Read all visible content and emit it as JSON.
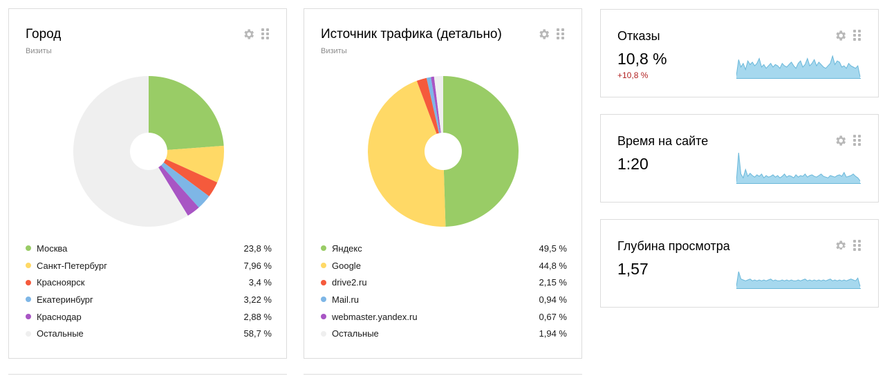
{
  "widgets": {
    "city": {
      "title": "Город",
      "subtitle": "Визиты",
      "chart_data": {
        "type": "pie",
        "categories": [
          "Москва",
          "Санкт-Петербург",
          "Красноярск",
          "Екатеринбург",
          "Краснодар",
          "Остальные"
        ],
        "values": [
          23.8,
          7.96,
          3.4,
          3.22,
          2.88,
          58.7
        ],
        "labels": [
          "23,8 %",
          "7,96 %",
          "3,4 %",
          "3,22 %",
          "2,88 %",
          "58,7 %"
        ],
        "colors": [
          "#99cc66",
          "#ffd966",
          "#f55a3c",
          "#7eb6e6",
          "#a855c4",
          "#efefef"
        ]
      }
    },
    "traffic": {
      "title": "Источник трафика (детально)",
      "subtitle": "Визиты",
      "chart_data": {
        "type": "pie",
        "categories": [
          "Яндекс",
          "Google",
          "drive2.ru",
          "Mail.ru",
          "webmaster.yandex.ru",
          "Остальные"
        ],
        "values": [
          49.5,
          44.8,
          2.15,
          0.94,
          0.67,
          1.94
        ],
        "labels": [
          "49,5 %",
          "44,8 %",
          "2,15 %",
          "0,94 %",
          "0,67 %",
          "1,94 %"
        ],
        "colors": [
          "#99cc66",
          "#ffd966",
          "#f55a3c",
          "#7eb6e6",
          "#a855c4",
          "#efefef"
        ]
      }
    },
    "bounce": {
      "title": "Отказы",
      "value": "10,8 %",
      "delta": "+10,8 %",
      "chart_data": {
        "type": "area",
        "values": [
          2,
          15,
          9,
          12,
          7,
          14,
          11,
          13,
          10,
          12,
          16,
          9,
          11,
          8,
          10,
          12,
          9,
          11,
          10,
          8,
          12,
          10,
          9,
          11,
          13,
          10,
          8,
          12,
          14,
          9,
          11,
          16,
          10,
          12,
          15,
          10,
          13,
          11,
          9,
          8,
          10,
          12,
          18,
          11,
          14,
          13,
          9,
          10,
          8,
          12,
          10,
          9,
          8,
          10,
          1
        ]
      }
    },
    "time": {
      "title": "Время на сайте",
      "value": "1:20",
      "chart_data": {
        "type": "area",
        "values": [
          2,
          40,
          12,
          7,
          18,
          9,
          13,
          10,
          8,
          11,
          9,
          12,
          7,
          10,
          8,
          9,
          11,
          8,
          10,
          7,
          9,
          12,
          8,
          10,
          9,
          7,
          11,
          8,
          10,
          9,
          12,
          8,
          10,
          11,
          9,
          8,
          10,
          12,
          9,
          8,
          7,
          10,
          9,
          8,
          10,
          11,
          9,
          14,
          8,
          9,
          10,
          12,
          9,
          7,
          3
        ]
      }
    },
    "depth": {
      "title": "Глубина просмотра",
      "value": "1,57",
      "chart_data": {
        "type": "area",
        "values": [
          2,
          18,
          10,
          9,
          8,
          9,
          10,
          8,
          9,
          8,
          9,
          8,
          9,
          8,
          9,
          10,
          8,
          9,
          8,
          8,
          9,
          8,
          9,
          8,
          9,
          8,
          8,
          9,
          8,
          9,
          10,
          8,
          9,
          8,
          9,
          8,
          9,
          8,
          9,
          8,
          9,
          10,
          8,
          9,
          8,
          9,
          8,
          9,
          8,
          9,
          10,
          9,
          8,
          11,
          2
        ]
      }
    }
  },
  "spark_color": "#a6d8ee",
  "spark_line": "#69b7d9"
}
